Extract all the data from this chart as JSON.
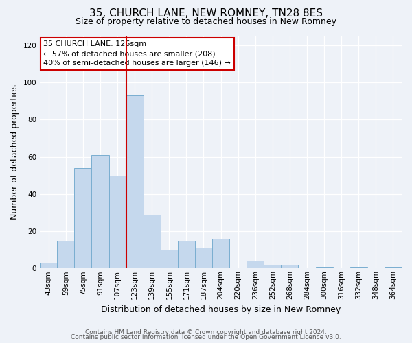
{
  "title": "35, CHURCH LANE, NEW ROMNEY, TN28 8ES",
  "subtitle": "Size of property relative to detached houses in New Romney",
  "xlabel": "Distribution of detached houses by size in New Romney",
  "ylabel": "Number of detached properties",
  "bin_labels": [
    "43sqm",
    "59sqm",
    "75sqm",
    "91sqm",
    "107sqm",
    "123sqm",
    "139sqm",
    "155sqm",
    "171sqm",
    "187sqm",
    "204sqm",
    "220sqm",
    "236sqm",
    "252sqm",
    "268sqm",
    "284sqm",
    "300sqm",
    "316sqm",
    "332sqm",
    "348sqm",
    "364sqm"
  ],
  "bar_heights": [
    3,
    15,
    54,
    61,
    50,
    93,
    29,
    10,
    15,
    11,
    16,
    0,
    4,
    2,
    2,
    0,
    1,
    0,
    1,
    0,
    1
  ],
  "bar_color": "#c5d8ed",
  "bar_edge_color": "#7aaed0",
  "property_line_color": "#cc0000",
  "annotation_line1": "35 CHURCH LANE: 126sqm",
  "annotation_line2": "← 57% of detached houses are smaller (208)",
  "annotation_line3": "40% of semi-detached houses are larger (146) →",
  "annotation_box_color": "#ffffff",
  "annotation_box_edge": "#cc0000",
  "ylim": [
    0,
    125
  ],
  "yticks": [
    0,
    20,
    40,
    60,
    80,
    100,
    120
  ],
  "footer1": "Contains HM Land Registry data © Crown copyright and database right 2024.",
  "footer2": "Contains public sector information licensed under the Open Government Licence v3.0.",
  "bg_color": "#eef2f8",
  "plot_bg_color": "#eef2f8",
  "grid_color": "#ffffff",
  "title_fontsize": 11,
  "subtitle_fontsize": 9,
  "tick_fontsize": 7.5,
  "ylabel_fontsize": 9,
  "xlabel_fontsize": 9,
  "annotation_fontsize": 8,
  "footer_fontsize": 6.5
}
